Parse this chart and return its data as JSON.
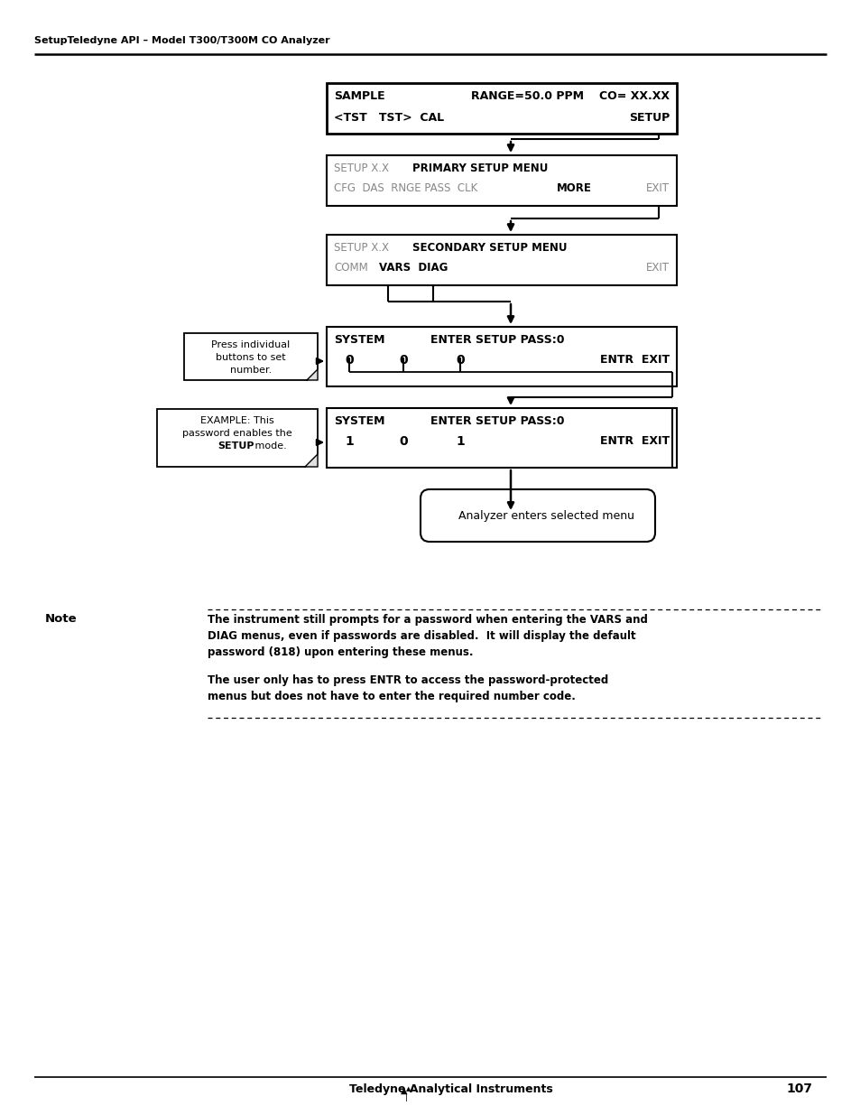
{
  "header_text": "SetupTeledyne API – Model T300/T300M CO Analyzer",
  "footer_page": "107",
  "footer_brand": "Teledyne Analytical Instruments",
  "note_label": "Note",
  "note_text1": "The instrument still prompts for a password when entering the VARS and\nDIAG menus, even if passwords are disabled.  It will display the default\npassword (818) upon entering these menus.",
  "note_text2": "The user only has to press ENTR to access the password-protected\nmenus but does not have to enter the required number code.",
  "oval_text": "Analyzer enters selected menu",
  "callout1_line1": "Press individual",
  "callout1_line2": "buttons to set",
  "callout1_line3": "number.",
  "callout2_line1": "EXAMPLE: This",
  "callout2_line2": "password enables the",
  "callout2_line3_bold": "SETUP",
  "callout2_line3_rest": " mode."
}
